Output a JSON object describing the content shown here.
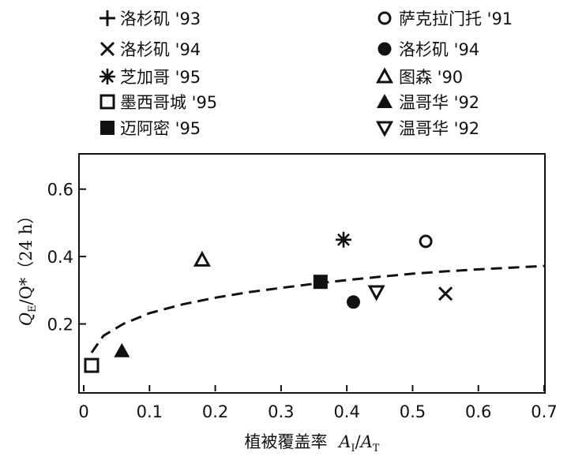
{
  "chart_data": {
    "type": "scatter",
    "xlabel_prefix": "植被覆盖率",
    "xlabel_var": "A",
    "xlabel_sub1": "I",
    "xlabel_sep": "/",
    "xlabel_var2": "A",
    "xlabel_sub2": "T",
    "ylabel_var": "Q",
    "ylabel_sub": "E",
    "ylabel_rest": "/Q*（24 h）",
    "xlim": [
      0,
      0.7
    ],
    "ylim": [
      0,
      0.7
    ],
    "x_ticks": [
      {
        "value": 0,
        "label": "0"
      },
      {
        "value": 0.1,
        "label": "0.1"
      },
      {
        "value": 0.2,
        "label": "0.2"
      },
      {
        "value": 0.3,
        "label": "0.3"
      },
      {
        "value": 0.4,
        "label": "0.4"
      },
      {
        "value": 0.5,
        "label": "0.5"
      },
      {
        "value": 0.6,
        "label": "0.6"
      },
      {
        "value": 0.7,
        "label": "0.7"
      }
    ],
    "y_ticks": [
      {
        "value": 0.2,
        "label": "0.2"
      },
      {
        "value": 0.4,
        "label": "0.4"
      },
      {
        "value": 0.6,
        "label": "0.6"
      }
    ],
    "legend_left": [
      {
        "marker": "plus",
        "label": "洛杉矶 '93"
      },
      {
        "marker": "cross",
        "label": "洛杉矶 '94"
      },
      {
        "marker": "asterisk",
        "label": "芝加哥 '95"
      },
      {
        "marker": "open-square",
        "label": "墨西哥城 '95"
      },
      {
        "marker": "filled-square",
        "label": "迈阿密 '95"
      }
    ],
    "legend_right": [
      {
        "marker": "open-circle",
        "label": "萨克拉门托 '91"
      },
      {
        "marker": "filled-circle",
        "label": "洛杉矶 '94"
      },
      {
        "marker": "open-triangle-up",
        "label": "图森 '90"
      },
      {
        "marker": "filled-triangle-up",
        "label": "温哥华 '92"
      },
      {
        "marker": "open-triangle-down",
        "label": "温哥华 '92"
      }
    ],
    "points": [
      {
        "series": "萨克拉门托 '91",
        "marker": "open-circle",
        "x": 0.52,
        "y": 0.445
      },
      {
        "series": "洛杉矶 '94",
        "marker": "cross",
        "x": 0.55,
        "y": 0.29
      },
      {
        "series": "芝加哥 '95",
        "marker": "asterisk",
        "x": 0.395,
        "y": 0.45
      },
      {
        "series": "图森 '90",
        "marker": "open-triangle-up",
        "x": 0.18,
        "y": 0.39
      },
      {
        "series": "迈阿密 '95",
        "marker": "filled-square",
        "x": 0.36,
        "y": 0.325
      },
      {
        "series": "洛杉矶 '94",
        "marker": "filled-circle",
        "x": 0.41,
        "y": 0.265
      },
      {
        "series": "温哥华 '92",
        "marker": "open-triangle-down",
        "x": 0.445,
        "y": 0.295
      },
      {
        "series": "温哥华 '92",
        "marker": "filled-triangle-up",
        "x": 0.058,
        "y": 0.12
      },
      {
        "series": "墨西哥城 '95",
        "marker": "open-square",
        "x": 0.012,
        "y": 0.077
      }
    ],
    "trend_curve": {
      "style": "dashed",
      "points": [
        {
          "x": 0.012,
          "y": 0.115
        },
        {
          "x": 0.03,
          "y": 0.165
        },
        {
          "x": 0.06,
          "y": 0.2
        },
        {
          "x": 0.1,
          "y": 0.232
        },
        {
          "x": 0.15,
          "y": 0.258
        },
        {
          "x": 0.2,
          "y": 0.278
        },
        {
          "x": 0.25,
          "y": 0.294
        },
        {
          "x": 0.3,
          "y": 0.307
        },
        {
          "x": 0.35,
          "y": 0.319
        },
        {
          "x": 0.4,
          "y": 0.33
        },
        {
          "x": 0.45,
          "y": 0.34
        },
        {
          "x": 0.5,
          "y": 0.349
        },
        {
          "x": 0.55,
          "y": 0.356
        },
        {
          "x": 0.6,
          "y": 0.362
        },
        {
          "x": 0.65,
          "y": 0.367
        },
        {
          "x": 0.7,
          "y": 0.372
        }
      ]
    }
  }
}
